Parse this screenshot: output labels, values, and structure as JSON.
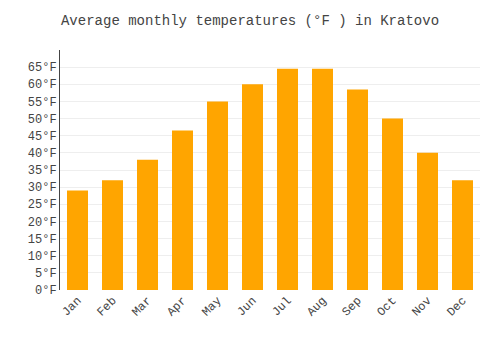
{
  "chart_data": {
    "type": "bar",
    "title": "Average monthly temperatures (°F ) in Kratovo",
    "categories": [
      "Jan",
      "Feb",
      "Mar",
      "Apr",
      "May",
      "Jun",
      "Jul",
      "Aug",
      "Sep",
      "Oct",
      "Nov",
      "Dec"
    ],
    "values": [
      29,
      32,
      38,
      46.5,
      55,
      60,
      64.5,
      64.5,
      58.5,
      50,
      40,
      32
    ],
    "color": "#FFA500",
    "ylim": [
      0,
      70
    ],
    "yticks": [
      {
        "value": 0,
        "label": "0°F"
      },
      {
        "value": 5,
        "label": "5°F"
      },
      {
        "value": 10,
        "label": "10°F"
      },
      {
        "value": 15,
        "label": "15°F"
      },
      {
        "value": 20,
        "label": "20°F"
      },
      {
        "value": 25,
        "label": "25°F"
      },
      {
        "value": 30,
        "label": "30°F"
      },
      {
        "value": 35,
        "label": "35°F"
      },
      {
        "value": 40,
        "label": "40°F"
      },
      {
        "value": 45,
        "label": "45°F"
      },
      {
        "value": 50,
        "label": "50°F"
      },
      {
        "value": 55,
        "label": "55°F"
      },
      {
        "value": 60,
        "label": "60°F"
      },
      {
        "value": 65,
        "label": "65°F"
      }
    ],
    "grid": true
  }
}
